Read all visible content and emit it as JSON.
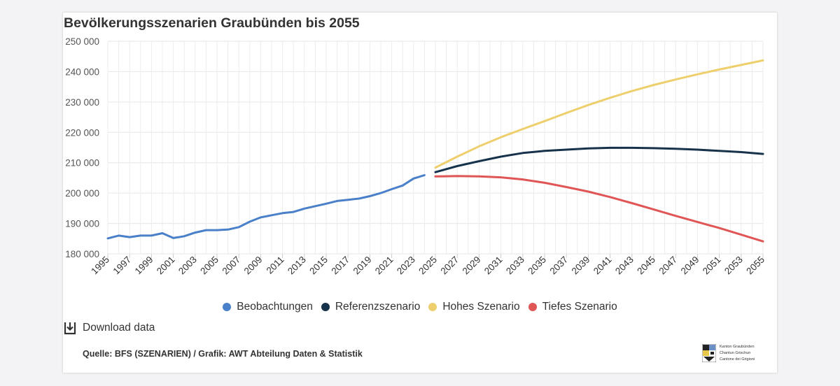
{
  "chart_data": {
    "type": "line",
    "title": "Bevölkerungsszenarien Graubünden bis 2055",
    "xlabel": "",
    "ylabel": "",
    "ylim": [
      180000,
      250000
    ],
    "xlim": [
      1995,
      2055
    ],
    "yticks": [
      250000,
      240000,
      230000,
      220000,
      210000,
      200000,
      190000,
      180000
    ],
    "ytick_labels": [
      "250 000",
      "240 000",
      "230 000",
      "220 000",
      "210 000",
      "200 000",
      "190 000",
      "180 000"
    ],
    "xticks": [
      "1995",
      "1997",
      "1999",
      "2001",
      "2003",
      "2005",
      "2007",
      "2009",
      "2011",
      "2013",
      "2015",
      "2017",
      "2019",
      "2021",
      "2023",
      "2025",
      "2027",
      "2029",
      "2031",
      "2033",
      "2035",
      "2037",
      "2039",
      "2041",
      "2043",
      "2045",
      "2047",
      "2049",
      "2051",
      "2053",
      "2055"
    ],
    "grid": true,
    "legend_position": "bottom",
    "series": [
      {
        "name": "Beobachtungen",
        "color": "#4a80c9",
        "x": [
          1995,
          1996,
          1997,
          1998,
          1999,
          2000,
          2001,
          2002,
          2003,
          2004,
          2005,
          2006,
          2007,
          2008,
          2009,
          2010,
          2011,
          2012,
          2013,
          2014,
          2015,
          2016,
          2017,
          2018,
          2019,
          2020,
          2021,
          2022,
          2023,
          2024
        ],
        "values": [
          185100,
          186000,
          185500,
          186000,
          186000,
          186800,
          185200,
          185800,
          187000,
          187800,
          187800,
          188000,
          188800,
          190600,
          192000,
          192700,
          193400,
          193800,
          194900,
          195700,
          196500,
          197400,
          197800,
          198200,
          199000,
          200000,
          201300,
          202500,
          204800,
          205900
        ]
      },
      {
        "name": "Referenzszenario",
        "color": "#17334b",
        "x": [
          2025,
          2027,
          2029,
          2031,
          2033,
          2035,
          2037,
          2039,
          2041,
          2043,
          2045,
          2047,
          2049,
          2051,
          2053,
          2055
        ],
        "values": [
          206900,
          208900,
          210500,
          212000,
          213200,
          213900,
          214300,
          214700,
          214900,
          214900,
          214800,
          214600,
          214300,
          213900,
          213500,
          212900
        ]
      },
      {
        "name": "Hohes Szenario",
        "color": "#eecf6d",
        "x": [
          2025,
          2027,
          2029,
          2031,
          2033,
          2035,
          2037,
          2039,
          2041,
          2043,
          2045,
          2047,
          2049,
          2051,
          2053,
          2055
        ],
        "values": [
          208400,
          212000,
          215400,
          218400,
          221100,
          223700,
          226400,
          229000,
          231400,
          233600,
          235600,
          237400,
          239100,
          240700,
          242200,
          243700
        ]
      },
      {
        "name": "Tiefes Szenario",
        "color": "#e05555",
        "x": [
          2025,
          2027,
          2029,
          2031,
          2033,
          2035,
          2037,
          2039,
          2041,
          2043,
          2045,
          2047,
          2049,
          2051,
          2053,
          2055
        ],
        "values": [
          205500,
          205600,
          205500,
          205200,
          204500,
          203400,
          202000,
          200500,
          198700,
          196700,
          194600,
          192500,
          190500,
          188500,
          186300,
          184100
        ]
      }
    ]
  },
  "legend": {
    "items": [
      {
        "label": "Beobachtungen",
        "color": "#4a80c9"
      },
      {
        "label": "Referenzszenario",
        "color": "#17334b"
      },
      {
        "label": "Hohes Szenario",
        "color": "#eecf6d"
      },
      {
        "label": "Tiefes Szenario",
        "color": "#e05555"
      }
    ]
  },
  "footer": {
    "download_label": "Download data",
    "source": "Quelle: BFS (SZENARIEN) / Grafik: AWT Abteilung Daten & Statistik",
    "logo_lines": [
      "Kanton Graubünden",
      "Chantun Grischun",
      "Cantone dei Grigioni"
    ]
  }
}
